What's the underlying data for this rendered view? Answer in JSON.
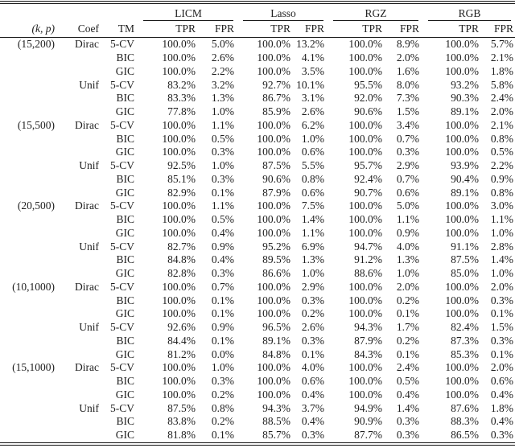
{
  "colors": {
    "background": "#ffffff",
    "text": "#1e1e1e",
    "rule": "#1a1a1a"
  },
  "table": {
    "col_groups": [
      {
        "label": "LICM"
      },
      {
        "label": "Lasso"
      },
      {
        "label": "RGZ"
      },
      {
        "label": "RGB"
      }
    ],
    "sub_headers": {
      "kp": "(k, p)",
      "coef": "Coef",
      "tm": "TM",
      "tpr": "TPR",
      "fpr": "FPR"
    },
    "rows": [
      {
        "kp": "(15,200)",
        "coef": "Dirac",
        "tm": "5-CV",
        "values": [
          "100.0%",
          "5.0%",
          "100.0%",
          "13.2%",
          "100.0%",
          "8.9%",
          "100.0%",
          "5.7%"
        ]
      },
      {
        "kp": "",
        "coef": "",
        "tm": "BIC",
        "values": [
          "100.0%",
          "2.6%",
          "100.0%",
          "4.1%",
          "100.0%",
          "2.0%",
          "100.0%",
          "2.1%"
        ]
      },
      {
        "kp": "",
        "coef": "",
        "tm": "GIC",
        "values": [
          "100.0%",
          "2.2%",
          "100.0%",
          "3.5%",
          "100.0%",
          "1.6%",
          "100.0%",
          "1.8%"
        ]
      },
      {
        "kp": "",
        "coef": "Unif",
        "tm": "5-CV",
        "values": [
          "83.2%",
          "3.2%",
          "92.7%",
          "10.1%",
          "95.5%",
          "8.0%",
          "93.2%",
          "5.8%"
        ]
      },
      {
        "kp": "",
        "coef": "",
        "tm": "BIC",
        "values": [
          "83.3%",
          "1.3%",
          "86.7%",
          "3.1%",
          "92.0%",
          "7.3%",
          "90.3%",
          "2.4%"
        ]
      },
      {
        "kp": "",
        "coef": "",
        "tm": "GIC",
        "values": [
          "77.8%",
          "1.0%",
          "85.9%",
          "2.6%",
          "90.6%",
          "1.5%",
          "89.1%",
          "2.0%"
        ]
      },
      {
        "kp": "(15,500)",
        "coef": "Dirac",
        "tm": "5-CV",
        "values": [
          "100.0%",
          "1.1%",
          "100.0%",
          "6.2%",
          "100.0%",
          "3.4%",
          "100.0%",
          "2.1%"
        ]
      },
      {
        "kp": "",
        "coef": "",
        "tm": "BIC",
        "values": [
          "100.0%",
          "0.5%",
          "100.0%",
          "1.0%",
          "100.0%",
          "0.7%",
          "100.0%",
          "0.8%"
        ]
      },
      {
        "kp": "",
        "coef": "",
        "tm": "GIC",
        "values": [
          "100.0%",
          "0.3%",
          "100.0%",
          "0.6%",
          "100.0%",
          "0.3%",
          "100.0%",
          "0.5%"
        ]
      },
      {
        "kp": "",
        "coef": "Unif",
        "tm": "5-CV",
        "values": [
          "92.5%",
          "1.0%",
          "87.5%",
          "5.5%",
          "95.7%",
          "2.9%",
          "93.9%",
          "2.2%"
        ]
      },
      {
        "kp": "",
        "coef": "",
        "tm": "BIC",
        "values": [
          "85.1%",
          "0.3%",
          "90.6%",
          "0.8%",
          "92.4%",
          "0.7%",
          "90.4%",
          "0.9%"
        ]
      },
      {
        "kp": "",
        "coef": "",
        "tm": "GIC",
        "values": [
          "82.9%",
          "0.1%",
          "87.9%",
          "0.6%",
          "90.7%",
          "0.6%",
          "89.1%",
          "0.8%"
        ]
      },
      {
        "kp": "(20,500)",
        "coef": "Dirac",
        "tm": "5-CV",
        "values": [
          "100.0%",
          "1.1%",
          "100.0%",
          "7.5%",
          "100.0%",
          "5.0%",
          "100.0%",
          "3.0%"
        ]
      },
      {
        "kp": "",
        "coef": "",
        "tm": "BIC",
        "values": [
          "100.0%",
          "0.5%",
          "100.0%",
          "1.4%",
          "100.0%",
          "1.1%",
          "100.0%",
          "1.1%"
        ]
      },
      {
        "kp": "",
        "coef": "",
        "tm": "GIC",
        "values": [
          "100.0%",
          "0.4%",
          "100.0%",
          "1.1%",
          "100.0%",
          "0.9%",
          "100.0%",
          "1.0%"
        ]
      },
      {
        "kp": "",
        "coef": "Unif",
        "tm": "5-CV",
        "values": [
          "82.7%",
          "0.9%",
          "95.2%",
          "6.9%",
          "94.7%",
          "4.0%",
          "91.1%",
          "2.8%"
        ]
      },
      {
        "kp": "",
        "coef": "",
        "tm": "BIC",
        "values": [
          "84.8%",
          "0.4%",
          "89.5%",
          "1.3%",
          "91.2%",
          "1.3%",
          "87.5%",
          "1.4%"
        ]
      },
      {
        "kp": "",
        "coef": "",
        "tm": "GIC",
        "values": [
          "82.8%",
          "0.3%",
          "86.6%",
          "1.0%",
          "88.6%",
          "1.0%",
          "85.0%",
          "1.0%"
        ]
      },
      {
        "kp": "(10,1000)",
        "coef": "Dirac",
        "tm": "5-CV",
        "values": [
          "100.0%",
          "0.7%",
          "100.0%",
          "2.9%",
          "100.0%",
          "2.0%",
          "100.0%",
          "2.0%"
        ]
      },
      {
        "kp": "",
        "coef": "",
        "tm": "BIC",
        "values": [
          "100.0%",
          "0.1%",
          "100.0%",
          "0.3%",
          "100.0%",
          "0.2%",
          "100.0%",
          "0.3%"
        ]
      },
      {
        "kp": "",
        "coef": "",
        "tm": "GIC",
        "values": [
          "100.0%",
          "0.1%",
          "100.0%",
          "0.2%",
          "100.0%",
          "0.1%",
          "100.0%",
          "0.1%"
        ]
      },
      {
        "kp": "",
        "coef": "Unif",
        "tm": "5-CV",
        "values": [
          "92.6%",
          "0.9%",
          "96.5%",
          "2.6%",
          "94.3%",
          "1.7%",
          "82.4%",
          "1.5%"
        ]
      },
      {
        "kp": "",
        "coef": "",
        "tm": "BIC",
        "values": [
          "84.4%",
          "0.1%",
          "89.1%",
          "0.3%",
          "87.9%",
          "0.2%",
          "87.3%",
          "0.3%"
        ]
      },
      {
        "kp": "",
        "coef": "",
        "tm": "GIC",
        "values": [
          "81.2%",
          "0.0%",
          "84.8%",
          "0.1%",
          "84.3%",
          "0.1%",
          "85.3%",
          "0.1%"
        ]
      },
      {
        "kp": "(15,1000)",
        "coef": "Dirac",
        "tm": "5-CV",
        "values": [
          "100.0%",
          "1.0%",
          "100.0%",
          "4.0%",
          "100.0%",
          "2.4%",
          "100.0%",
          "2.0%"
        ]
      },
      {
        "kp": "",
        "coef": "",
        "tm": "BIC",
        "values": [
          "100.0%",
          "0.3%",
          "100.0%",
          "0.6%",
          "100.0%",
          "0.5%",
          "100.0%",
          "0.6%"
        ]
      },
      {
        "kp": "",
        "coef": "",
        "tm": "GIC",
        "values": [
          "100.0%",
          "0.2%",
          "100.0%",
          "0.4%",
          "100.0%",
          "0.4%",
          "100.0%",
          "0.4%"
        ]
      },
      {
        "kp": "",
        "coef": "Unif",
        "tm": "5-CV",
        "values": [
          "87.5%",
          "0.8%",
          "94.3%",
          "3.7%",
          "94.9%",
          "1.4%",
          "87.6%",
          "1.8%"
        ]
      },
      {
        "kp": "",
        "coef": "",
        "tm": "BIC",
        "values": [
          "83.8%",
          "0.2%",
          "88.5%",
          "0.4%",
          "90.9%",
          "0.3%",
          "88.3%",
          "0.4%"
        ]
      },
      {
        "kp": "",
        "coef": "",
        "tm": "GIC",
        "values": [
          "81.8%",
          "0.1%",
          "85.7%",
          "0.3%",
          "87.7%",
          "0.3%",
          "86.5%",
          "0.3%"
        ]
      }
    ]
  }
}
